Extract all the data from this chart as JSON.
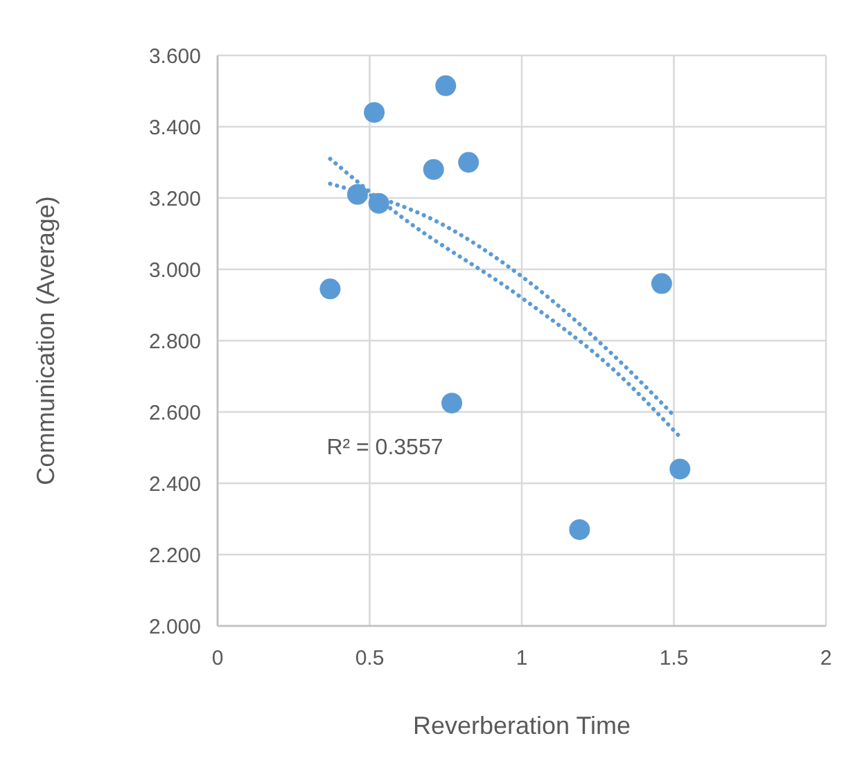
{
  "chart_data": {
    "type": "scatter",
    "xlabel": "Reverberation Time",
    "ylabel": "Communication (Average)",
    "xlim": [
      0,
      2
    ],
    "xticks": [
      0,
      0.5,
      1,
      1.5,
      2
    ],
    "ylim": [
      2.0,
      3.6
    ],
    "yticks": [
      {
        "value": 2.0,
        "label": "2.000"
      },
      {
        "value": 2.2,
        "label": "2.200"
      },
      {
        "value": 2.4,
        "label": "2.400"
      },
      {
        "value": 2.6,
        "label": "2.600"
      },
      {
        "value": 2.8,
        "label": "2.800"
      },
      {
        "value": 3.0,
        "label": "3.000"
      },
      {
        "value": 3.2,
        "label": "3.200"
      },
      {
        "value": 3.4,
        "label": "3.400"
      },
      {
        "value": 3.6,
        "label": "3.600"
      }
    ],
    "grid": true,
    "series": [
      {
        "color": "#5b9bd5",
        "marker": "circle",
        "x": [
          0.37,
          0.46,
          0.515,
          0.53,
          0.71,
          0.75,
          0.77,
          0.825,
          1.19,
          1.46,
          1.52
        ],
        "values": [
          2.945,
          3.21,
          3.44,
          3.185,
          3.28,
          3.515,
          2.625,
          3.3,
          2.27,
          2.96,
          2.44
        ]
      },
      {
        "type": "line",
        "color": "#5b9bd5",
        "line_style": "dotted",
        "x": [
          0.37,
          0.6,
          1.0,
          1.3,
          1.52
        ],
        "values": [
          3.31,
          3.15,
          2.92,
          2.72,
          2.53
        ]
      },
      {
        "type": "line",
        "color": "#5b9bd5",
        "line_style": "dotted",
        "x": [
          0.37,
          0.73,
          1.0,
          1.3,
          1.5
        ],
        "values": [
          3.24,
          3.13,
          2.98,
          2.76,
          2.59
        ]
      }
    ],
    "annotations": [
      "R² = 0.3557"
    ]
  }
}
